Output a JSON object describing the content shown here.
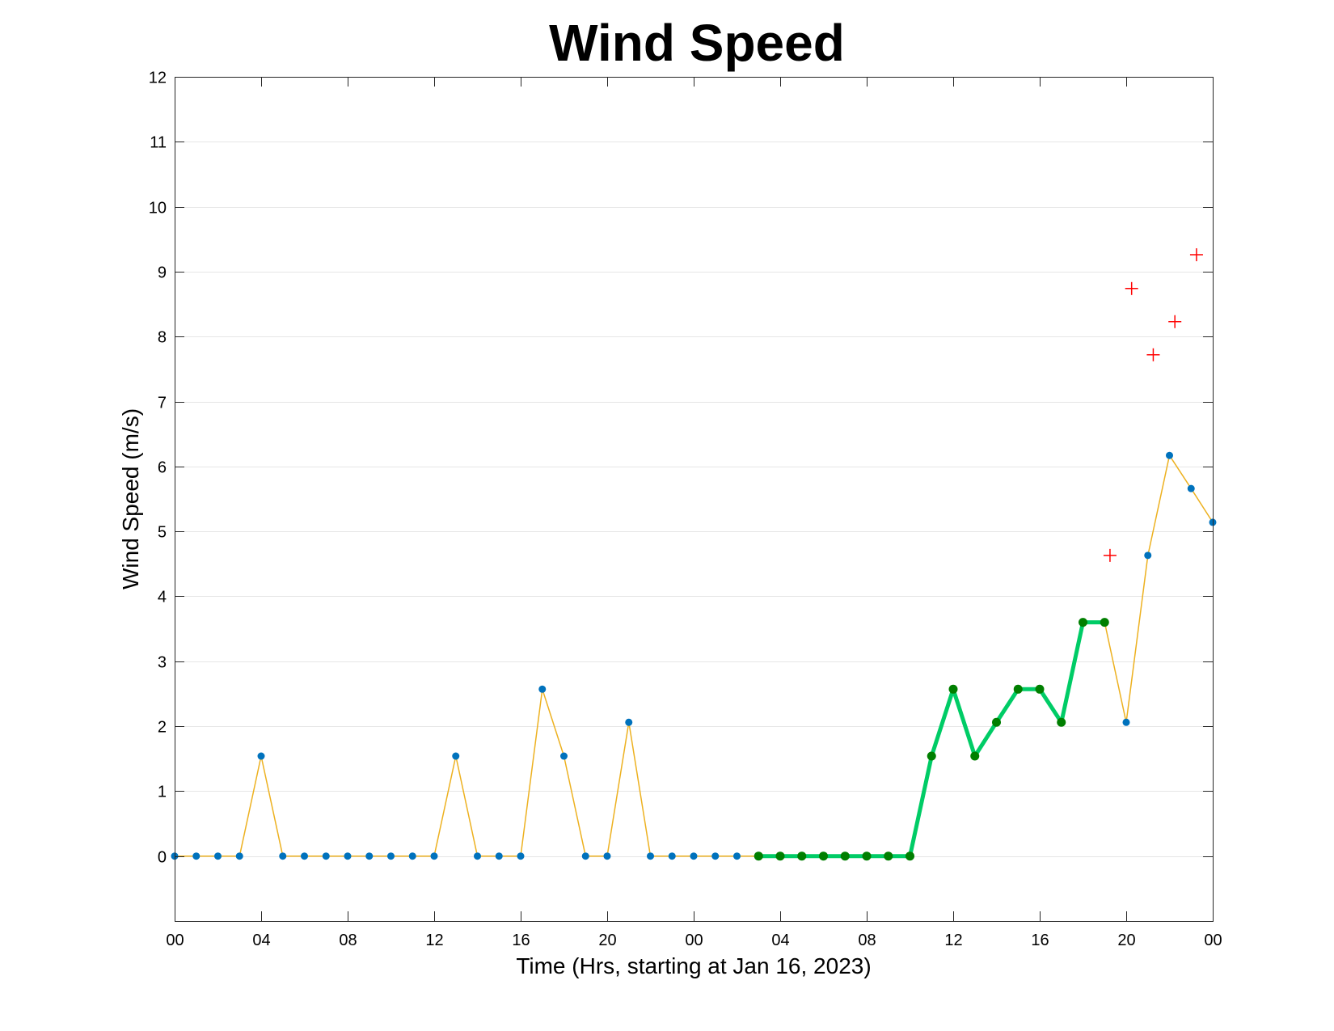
{
  "chart_data": {
    "type": "line",
    "title": "Wind Speed",
    "xlabel": "Time (Hrs, starting at Jan 16, 2023)",
    "ylabel": "Wind Speed (m/s)",
    "ylim": [
      -1,
      12
    ],
    "yticks": [
      0,
      1,
      2,
      3,
      4,
      5,
      6,
      7,
      8,
      9,
      10,
      11,
      12
    ],
    "xlim": [
      "2023-01-16 00:00",
      "2023-01-18 00:00"
    ],
    "xtick_labels": [
      "00",
      "04",
      "08",
      "12",
      "16",
      "20",
      "00",
      "04",
      "08",
      "12",
      "16",
      "20",
      "00"
    ],
    "grid": "horizontal",
    "colors": {
      "observed_line": "#EDB120",
      "observed_marker": "#0072BD",
      "highlight_line": "#00CC66",
      "highlight_marker": "#007F00",
      "plus_marker": "#FF0000",
      "grid": "#e6e6e6"
    },
    "series": [
      {
        "style": "thin line with dot markers",
        "x": [
          "2023-01-16 00:00",
          "2023-01-16 01:00",
          "2023-01-16 02:00",
          "2023-01-16 03:00",
          "2023-01-16 04:00",
          "2023-01-16 05:00",
          "2023-01-16 06:00",
          "2023-01-16 07:00",
          "2023-01-16 08:00",
          "2023-01-16 09:00",
          "2023-01-16 10:00",
          "2023-01-16 11:00",
          "2023-01-16 12:00",
          "2023-01-16 13:00",
          "2023-01-16 14:00",
          "2023-01-16 15:00",
          "2023-01-16 16:00",
          "2023-01-16 17:00",
          "2023-01-16 18:00",
          "2023-01-16 19:00",
          "2023-01-16 20:00",
          "2023-01-16 21:00",
          "2023-01-16 22:00",
          "2023-01-16 23:00",
          "2023-01-17 00:00",
          "2023-01-17 01:00",
          "2023-01-17 02:00",
          "2023-01-17 03:00",
          "2023-01-17 04:00",
          "2023-01-17 05:00",
          "2023-01-17 06:00",
          "2023-01-17 07:00",
          "2023-01-17 08:00",
          "2023-01-17 09:00",
          "2023-01-17 10:00",
          "2023-01-17 11:00",
          "2023-01-17 12:00",
          "2023-01-17 13:00",
          "2023-01-17 14:00",
          "2023-01-17 15:00",
          "2023-01-17 16:00",
          "2023-01-17 17:00",
          "2023-01-17 18:00",
          "2023-01-17 19:00",
          "2023-01-17 20:00",
          "2023-01-17 21:00",
          "2023-01-17 22:00",
          "2023-01-17 23:00",
          "2023-01-18 00:00"
        ],
        "values": [
          0,
          0,
          0,
          0,
          1.54,
          0,
          0,
          0,
          0,
          0,
          0,
          0,
          0,
          1.54,
          0,
          0,
          0,
          2.57,
          1.54,
          0,
          0,
          2.06,
          0,
          0,
          0,
          0,
          0,
          0,
          0,
          0,
          0,
          0,
          0,
          0,
          0,
          1.54,
          2.57,
          1.54,
          2.06,
          2.57,
          2.57,
          2.06,
          3.6,
          3.6,
          2.06,
          4.63,
          6.17,
          5.66,
          5.14
        ]
      },
      {
        "style": "thick line with dot markers",
        "x": [
          "2023-01-17 03:00",
          "2023-01-17 04:00",
          "2023-01-17 05:00",
          "2023-01-17 06:00",
          "2023-01-17 07:00",
          "2023-01-17 08:00",
          "2023-01-17 09:00",
          "2023-01-17 10:00",
          "2023-01-17 11:00",
          "2023-01-17 12:00",
          "2023-01-17 13:00",
          "2023-01-17 14:00",
          "2023-01-17 15:00",
          "2023-01-17 16:00",
          "2023-01-17 17:00",
          "2023-01-17 18:00",
          "2023-01-17 19:00"
        ],
        "values": [
          0,
          0,
          0,
          0,
          0,
          0,
          0,
          0,
          1.54,
          2.57,
          1.54,
          2.06,
          2.57,
          2.57,
          2.06,
          3.6,
          3.6
        ]
      },
      {
        "style": "plus markers",
        "x": [
          "2023-01-17 19:15",
          "2023-01-17 20:15",
          "2023-01-17 21:15",
          "2023-01-17 22:15",
          "2023-01-17 23:15"
        ],
        "values": [
          4.63,
          8.74,
          7.72,
          8.23,
          9.26
        ]
      }
    ]
  }
}
